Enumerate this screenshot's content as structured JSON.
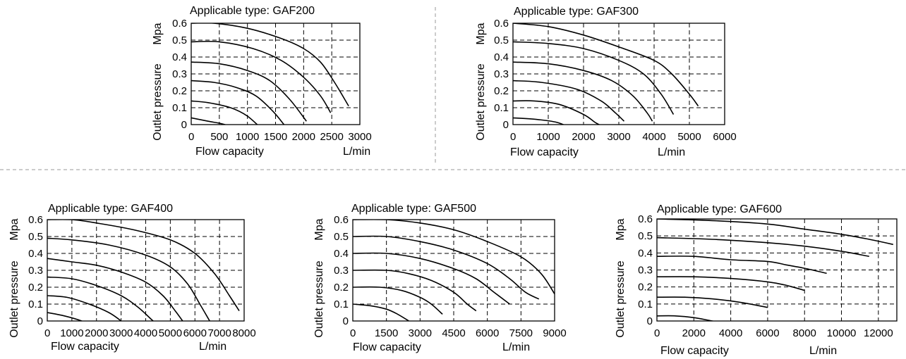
{
  "chart_data": [
    {
      "type": "line",
      "title": "Applicable type: GAF200",
      "xlabel": "Flow capacity",
      "xunit": "L/min",
      "ylabel": "Outlet pressure",
      "yunit": "Mpa",
      "xlim": [
        0,
        3000
      ],
      "ylim": [
        0,
        0.6
      ],
      "x_ticks": [
        "0",
        "500",
        "1000",
        "1500",
        "2000",
        "2500",
        "3000"
      ],
      "y_ticks": [
        "0",
        "0.1",
        "0.2",
        "0.3",
        "0.4",
        "0.5",
        "0.6"
      ],
      "grid": true,
      "series": [
        {
          "values": [
            [
              0,
              0.6
            ],
            [
              400,
              0.6
            ],
            [
              1000,
              0.57
            ],
            [
              1600,
              0.51
            ],
            [
              2000,
              0.45
            ],
            [
              2300,
              0.37
            ],
            [
              2550,
              0.25
            ],
            [
              2800,
              0.11
            ]
          ]
        },
        {
          "values": [
            [
              0,
              0.49
            ],
            [
              500,
              0.49
            ],
            [
              1100,
              0.45
            ],
            [
              1600,
              0.38
            ],
            [
              2000,
              0.28
            ],
            [
              2300,
              0.17
            ],
            [
              2480,
              0.07
            ]
          ]
        },
        {
          "values": [
            [
              0,
              0.37
            ],
            [
              500,
              0.36
            ],
            [
              1000,
              0.32
            ],
            [
              1400,
              0.26
            ],
            [
              1750,
              0.15
            ],
            [
              2050,
              0.02
            ]
          ]
        },
        {
          "values": [
            [
              0,
              0.26
            ],
            [
              400,
              0.25
            ],
            [
              800,
              0.22
            ],
            [
              1150,
              0.17
            ],
            [
              1450,
              0.08
            ],
            [
              1650,
              0.0
            ]
          ]
        },
        {
          "values": [
            [
              0,
              0.14
            ],
            [
              300,
              0.13
            ],
            [
              700,
              0.1
            ],
            [
              1000,
              0.05
            ],
            [
              1300,
              -0.04
            ]
          ]
        },
        {
          "values": [
            [
              0,
              0.04
            ],
            [
              300,
              0.02
            ],
            [
              600,
              0.0
            ],
            [
              850,
              -0.04
            ]
          ]
        }
      ]
    },
    {
      "type": "line",
      "title": "Applicable type: GAF300",
      "xlabel": "Flow capacity",
      "xunit": "L/min",
      "ylabel": "Outlet pressure",
      "yunit": "Mpa",
      "xlim": [
        0,
        6000
      ],
      "ylim": [
        0,
        0.6
      ],
      "x_ticks": [
        "0",
        "1000",
        "2000",
        "3000",
        "4000",
        "5000",
        "6000"
      ],
      "y_ticks": [
        "0",
        "0.1",
        "0.2",
        "0.3",
        "0.4",
        "0.5",
        "0.6"
      ],
      "grid": true,
      "series": [
        {
          "values": [
            [
              0,
              0.6
            ],
            [
              1000,
              0.58
            ],
            [
              2000,
              0.53
            ],
            [
              3000,
              0.46
            ],
            [
              4000,
              0.38
            ],
            [
              4500,
              0.3
            ],
            [
              5000,
              0.18
            ],
            [
              5250,
              0.11
            ]
          ]
        },
        {
          "values": [
            [
              0,
              0.49
            ],
            [
              1000,
              0.48
            ],
            [
              2000,
              0.45
            ],
            [
              3000,
              0.38
            ],
            [
              3700,
              0.3
            ],
            [
              4200,
              0.18
            ],
            [
              4550,
              0.06
            ]
          ]
        },
        {
          "values": [
            [
              0,
              0.37
            ],
            [
              1000,
              0.36
            ],
            [
              2000,
              0.32
            ],
            [
              2800,
              0.26
            ],
            [
              3400,
              0.17
            ],
            [
              3800,
              0.07
            ],
            [
              3950,
              0.02
            ]
          ]
        },
        {
          "values": [
            [
              0,
              0.26
            ],
            [
              800,
              0.25
            ],
            [
              1800,
              0.21
            ],
            [
              2500,
              0.14
            ],
            [
              2900,
              0.07
            ],
            [
              3150,
              0.02
            ]
          ]
        },
        {
          "values": [
            [
              0,
              0.14
            ],
            [
              600,
              0.14
            ],
            [
              1300,
              0.12
            ],
            [
              2000,
              0.06
            ],
            [
              2350,
              0.01
            ],
            [
              2550,
              -0.01
            ]
          ]
        },
        {
          "values": [
            [
              0,
              0.04
            ],
            [
              700,
              0.03
            ],
            [
              1300,
              0.01
            ],
            [
              1800,
              -0.04
            ]
          ]
        }
      ]
    },
    {
      "type": "line",
      "title": "Applicable type: GAF400",
      "xlabel": "Flow capacity",
      "xunit": "L/min",
      "ylabel": "Outlet pressure",
      "yunit": "Mpa",
      "xlim": [
        0,
        8000
      ],
      "ylim": [
        0,
        0.6
      ],
      "x_ticks": [
        "0",
        "1000",
        "2000",
        "3000",
        "4000",
        "5000",
        "6000",
        "7000",
        "8000"
      ],
      "y_ticks": [
        "0",
        "0.1",
        "0.2",
        "0.3",
        "0.4",
        "0.5",
        "0.6"
      ],
      "grid": true,
      "series": [
        {
          "values": [
            [
              0,
              0.6
            ],
            [
              1000,
              0.6
            ],
            [
              2000,
              0.58
            ],
            [
              3500,
              0.54
            ],
            [
              5000,
              0.48
            ],
            [
              6000,
              0.4
            ],
            [
              6800,
              0.28
            ],
            [
              7400,
              0.15
            ],
            [
              7800,
              0.06
            ]
          ]
        },
        {
          "values": [
            [
              0,
              0.49
            ],
            [
              1000,
              0.48
            ],
            [
              2500,
              0.45
            ],
            [
              4000,
              0.39
            ],
            [
              5000,
              0.32
            ],
            [
              5700,
              0.22
            ],
            [
              6200,
              0.1
            ],
            [
              6600,
              0.0
            ]
          ]
        },
        {
          "values": [
            [
              0,
              0.37
            ],
            [
              1000,
              0.35
            ],
            [
              2000,
              0.33
            ],
            [
              3000,
              0.29
            ],
            [
              4000,
              0.23
            ],
            [
              4700,
              0.15
            ],
            [
              5200,
              0.06
            ],
            [
              5500,
              0.0
            ]
          ]
        },
        {
          "values": [
            [
              0,
              0.26
            ],
            [
              1000,
              0.25
            ],
            [
              2000,
              0.21
            ],
            [
              3000,
              0.15
            ],
            [
              3700,
              0.08
            ],
            [
              4300,
              0.0
            ],
            [
              4500,
              -0.02
            ]
          ]
        },
        {
          "values": [
            [
              0,
              0.15
            ],
            [
              800,
              0.14
            ],
            [
              1700,
              0.1
            ],
            [
              2500,
              0.05
            ],
            [
              3000,
              0.0
            ],
            [
              3200,
              -0.03
            ]
          ]
        },
        {
          "values": [
            [
              0,
              0.05
            ],
            [
              700,
              0.03
            ],
            [
              1400,
              0.0
            ],
            [
              2000,
              -0.04
            ],
            [
              2300,
              -0.05
            ]
          ]
        }
      ]
    },
    {
      "type": "line",
      "title": "Applicable type: GAF500",
      "xlabel": "Flow capacity",
      "xunit": "L/min",
      "ylabel": "Outlet pressure",
      "yunit": "Mpa",
      "xlim": [
        0,
        9000
      ],
      "ylim": [
        0,
        0.6
      ],
      "x_ticks": [
        "0",
        "1500",
        "3000",
        "4500",
        "6000",
        "7500",
        "9000"
      ],
      "y_ticks": [
        "0",
        "0.1",
        "0.2",
        "0.3",
        "0.4",
        "0.5",
        "0.6"
      ],
      "grid": true,
      "series": [
        {
          "values": [
            [
              0,
              0.6
            ],
            [
              1500,
              0.6
            ],
            [
              3000,
              0.58
            ],
            [
              4500,
              0.54
            ],
            [
              6000,
              0.47
            ],
            [
              7500,
              0.38
            ],
            [
              8400,
              0.28
            ],
            [
              9000,
              0.16
            ]
          ]
        },
        {
          "values": [
            [
              0,
              0.5
            ],
            [
              1500,
              0.5
            ],
            [
              3000,
              0.47
            ],
            [
              4500,
              0.42
            ],
            [
              6000,
              0.34
            ],
            [
              7000,
              0.25
            ],
            [
              7700,
              0.17
            ],
            [
              8300,
              0.13
            ]
          ]
        },
        {
          "values": [
            [
              0,
              0.4
            ],
            [
              1500,
              0.4
            ],
            [
              3000,
              0.37
            ],
            [
              4500,
              0.31
            ],
            [
              5500,
              0.25
            ],
            [
              6300,
              0.17
            ],
            [
              7000,
              0.1
            ]
          ]
        },
        {
          "values": [
            [
              0,
              0.3
            ],
            [
              1500,
              0.3
            ],
            [
              2500,
              0.28
            ],
            [
              3500,
              0.24
            ],
            [
              4500,
              0.17
            ],
            [
              5100,
              0.1
            ],
            [
              5500,
              0.06
            ]
          ]
        },
        {
          "values": [
            [
              0,
              0.2
            ],
            [
              1200,
              0.2
            ],
            [
              2200,
              0.18
            ],
            [
              3000,
              0.14
            ],
            [
              3500,
              0.1
            ],
            [
              4000,
              0.04
            ]
          ]
        },
        {
          "values": [
            [
              0,
              0.1
            ],
            [
              800,
              0.09
            ],
            [
              1500,
              0.07
            ],
            [
              2000,
              0.04
            ],
            [
              2500,
              0.0
            ]
          ]
        }
      ]
    },
    {
      "type": "line",
      "title": "Applicable type: GAF600",
      "xlabel": "Flow capacity",
      "xunit": "L/min",
      "ylabel": "Outlet pressure",
      "yunit": "Mpa",
      "xlim": [
        0,
        13000
      ],
      "ylim": [
        0,
        0.6
      ],
      "x_ticks": [
        "0",
        "2000",
        "4000",
        "6000",
        "8000",
        "10000",
        "12000"
      ],
      "y_ticks": [
        "0",
        "0.1",
        "0.2",
        "0.3",
        "0.4",
        "0.5",
        "0.6"
      ],
      "grid": true,
      "series": [
        {
          "values": [
            [
              0,
              0.6
            ],
            [
              3000,
              0.59
            ],
            [
              6000,
              0.57
            ],
            [
              8000,
              0.54
            ],
            [
              10000,
              0.51
            ],
            [
              11500,
              0.48
            ],
            [
              12800,
              0.45
            ]
          ]
        },
        {
          "values": [
            [
              0,
              0.49
            ],
            [
              3000,
              0.48
            ],
            [
              6000,
              0.46
            ],
            [
              8000,
              0.44
            ],
            [
              10000,
              0.41
            ],
            [
              11500,
              0.38
            ]
          ]
        },
        {
          "values": [
            [
              0,
              0.38
            ],
            [
              2000,
              0.38
            ],
            [
              4000,
              0.36
            ],
            [
              6000,
              0.35
            ],
            [
              7000,
              0.33
            ],
            [
              8000,
              0.31
            ],
            [
              9200,
              0.28
            ]
          ]
        },
        {
          "values": [
            [
              0,
              0.26
            ],
            [
              2000,
              0.26
            ],
            [
              4000,
              0.25
            ],
            [
              6000,
              0.23
            ],
            [
              7000,
              0.21
            ],
            [
              8000,
              0.18
            ]
          ]
        },
        {
          "values": [
            [
              0,
              0.14
            ],
            [
              1500,
              0.14
            ],
            [
              3000,
              0.13
            ],
            [
              4500,
              0.11
            ],
            [
              6000,
              0.08
            ]
          ]
        },
        {
          "values": [
            [
              0,
              0.03
            ],
            [
              1000,
              0.03
            ],
            [
              2000,
              0.02
            ],
            [
              3000,
              0.0
            ],
            [
              4500,
              -0.03
            ]
          ]
        }
      ]
    }
  ]
}
